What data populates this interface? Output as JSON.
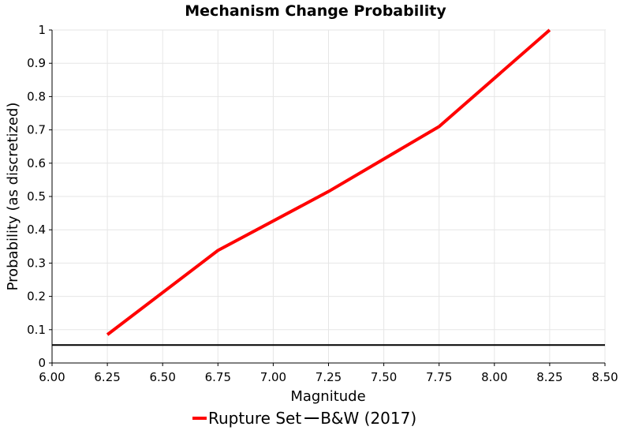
{
  "chart_data": {
    "type": "line",
    "title": "Mechanism Change Probability",
    "xlabel": "Magnitude",
    "ylabel": "Probability (as discretized)",
    "xlim": [
      6.0,
      8.5
    ],
    "ylim": [
      0,
      1
    ],
    "x_ticks": [
      "6.00",
      "6.25",
      "6.50",
      "6.75",
      "7.00",
      "7.25",
      "7.50",
      "7.75",
      "8.00",
      "8.25",
      "8.50"
    ],
    "y_ticks": [
      "0",
      "0.1",
      "0.2",
      "0.3",
      "0.4",
      "0.5",
      "0.6",
      "0.7",
      "0.8",
      "0.9",
      "1"
    ],
    "grid": true,
    "legend_position": "bottom",
    "series": [
      {
        "name": "Rupture Set",
        "color": "#ff0000",
        "x": [
          6.25,
          6.75,
          7.25,
          7.75,
          8.25
        ],
        "y": [
          0.085,
          0.338,
          0.515,
          0.71,
          1.0
        ]
      },
      {
        "name": "B&W (2017)",
        "color": "#000000",
        "x": [
          6.0,
          8.5
        ],
        "y": [
          0.054,
          0.054
        ]
      }
    ]
  }
}
